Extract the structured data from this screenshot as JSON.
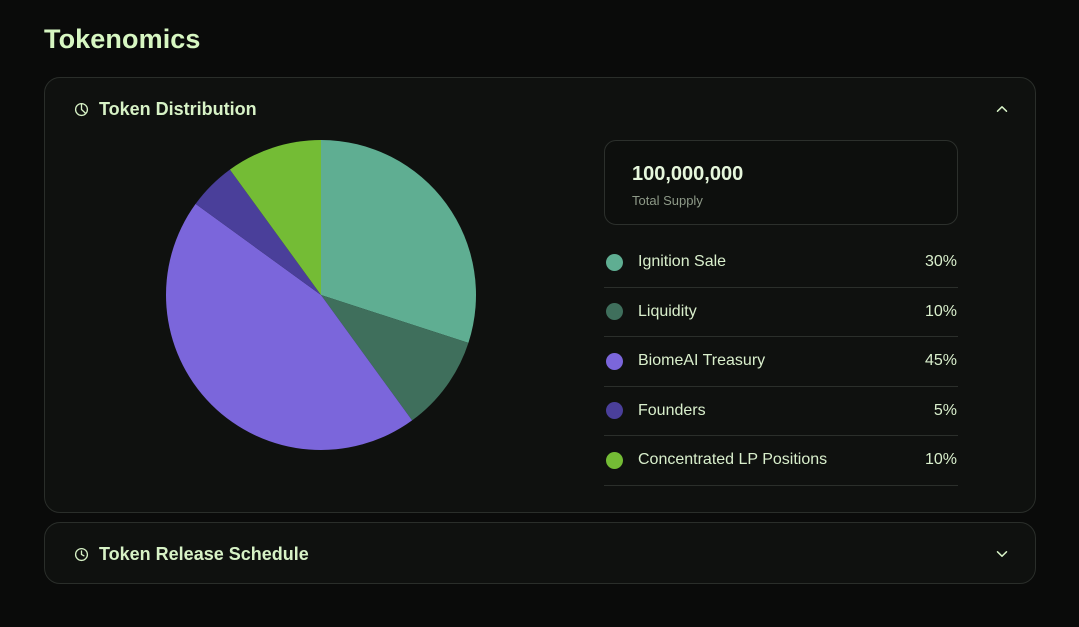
{
  "page": {
    "title": "Tokenomics"
  },
  "distribution": {
    "header_title": "Token Distribution",
    "header_icon": "pie-chart-icon",
    "toggle_icon": "chevron-up-icon",
    "supply_value": "100,000,000",
    "supply_label": "Total Supply",
    "legend": [
      {
        "label": "Ignition Sale",
        "percent_text": "30%",
        "color": "#5fae92"
      },
      {
        "label": "Liquidity",
        "percent_text": "10%",
        "color": "#3f6f5c"
      },
      {
        "label": "BiomeAI Treasury",
        "percent_text": "45%",
        "color": "#7b66db"
      },
      {
        "label": "Founders",
        "percent_text": "5%",
        "color": "#4a3f9a"
      },
      {
        "label": "Concentrated LP Positions",
        "percent_text": "10%",
        "color": "#74bc35"
      }
    ]
  },
  "chart_data": {
    "type": "pie",
    "categories": [
      "Ignition Sale",
      "Liquidity",
      "BiomeAI Treasury",
      "Founders",
      "Concentrated LP Positions"
    ],
    "values": [
      30,
      10,
      45,
      5,
      10
    ],
    "colors": [
      "#5fae92",
      "#3f6f5c",
      "#7b66db",
      "#4a3f9a",
      "#74bc35"
    ],
    "start": "top, clockwise"
  },
  "release": {
    "header_title": "Token Release Schedule",
    "header_icon": "clock-icon",
    "toggle_icon": "chevron-down-icon"
  },
  "colors": {
    "background": "#0a0b0a",
    "panel": "#0f110f",
    "accent_text": "#d7f7c2"
  }
}
